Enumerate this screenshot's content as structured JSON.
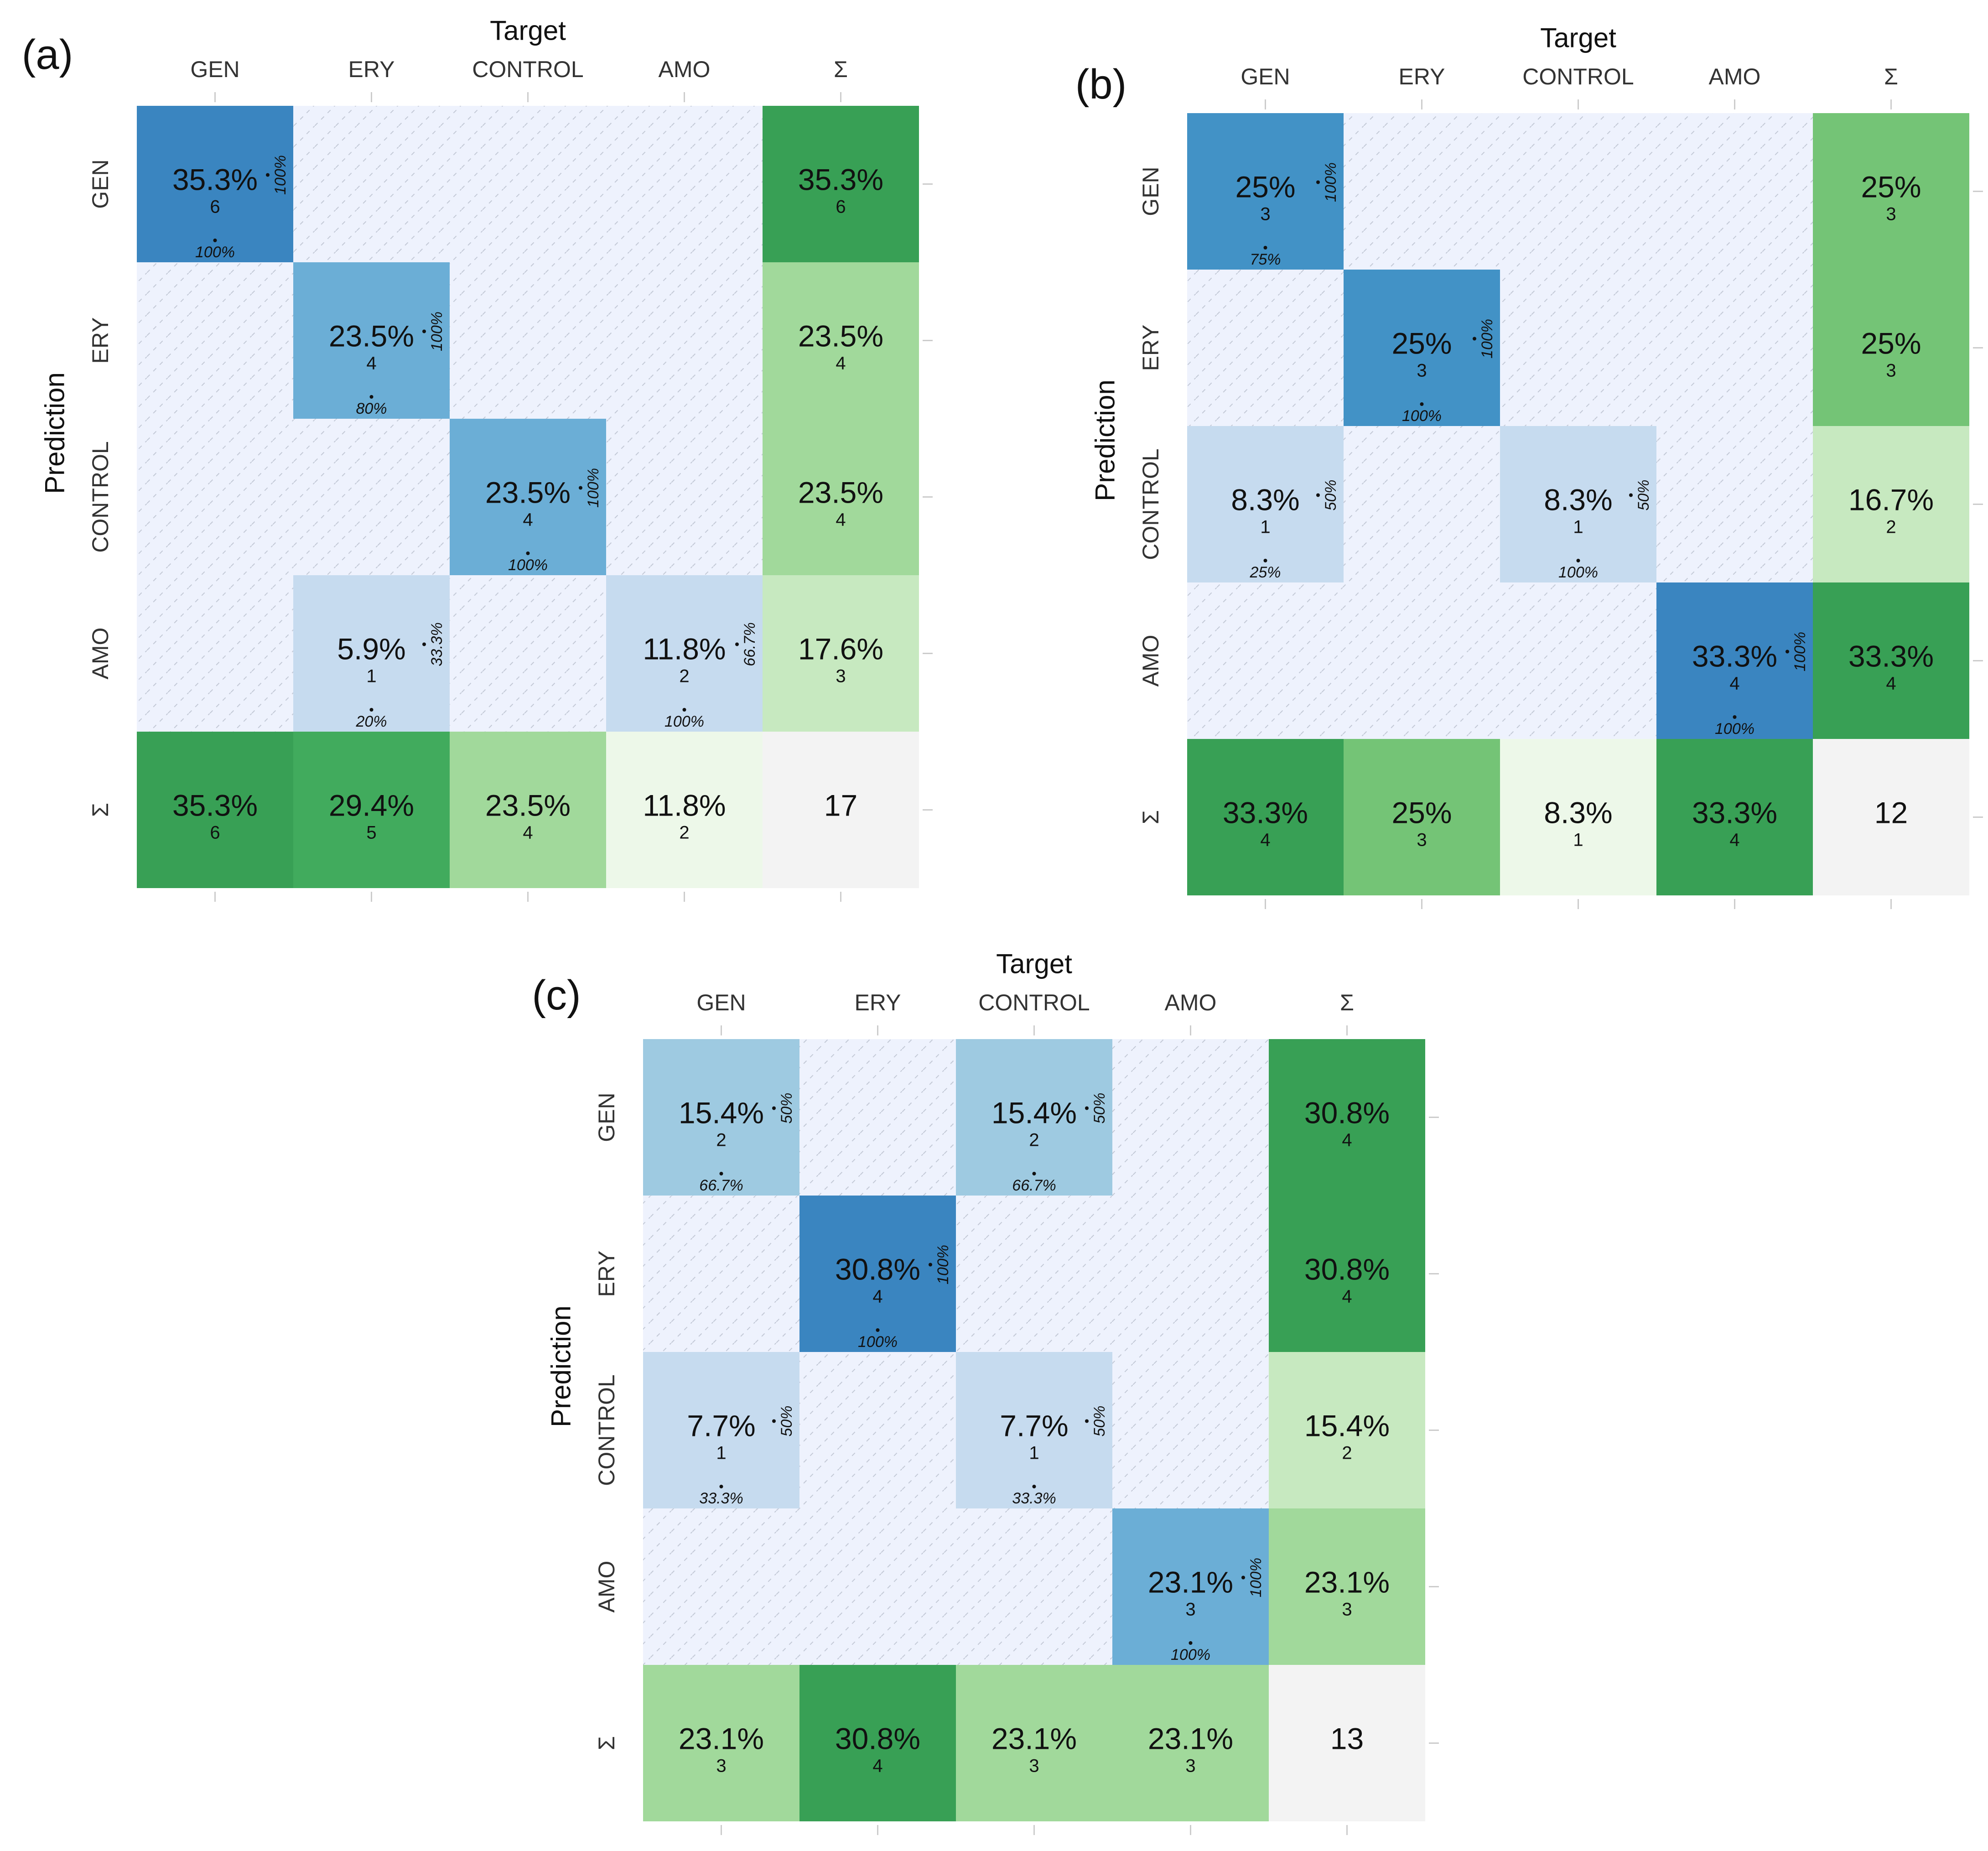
{
  "chart_data": [
    {
      "type": "heatmap",
      "panel_label": "(a)",
      "title": "",
      "xlabel": "Target",
      "ylabel": "Prediction",
      "classes": [
        "GEN",
        "ERY",
        "CONTROL",
        "AMO"
      ],
      "sum_label": "Σ",
      "total": 17,
      "cells": [
        {
          "row": 0,
          "col": 0,
          "pct": "35.3%",
          "count": "6",
          "col_pct": "100%",
          "row_pct": "100%"
        },
        {
          "row": 1,
          "col": 1,
          "pct": "23.5%",
          "count": "4",
          "col_pct": "80%",
          "row_pct": "100%"
        },
        {
          "row": 2,
          "col": 2,
          "pct": "23.5%",
          "count": "4",
          "col_pct": "100%",
          "row_pct": "100%"
        },
        {
          "row": 3,
          "col": 1,
          "pct": "5.9%",
          "count": "1",
          "col_pct": "20%",
          "row_pct": "33.3%"
        },
        {
          "row": 3,
          "col": 3,
          "pct": "11.8%",
          "count": "2",
          "col_pct": "100%",
          "row_pct": "66.7%"
        }
      ],
      "row_sums": [
        {
          "pct": "35.3%",
          "count": "6"
        },
        {
          "pct": "23.5%",
          "count": "4"
        },
        {
          "pct": "23.5%",
          "count": "4"
        },
        {
          "pct": "17.6%",
          "count": "3"
        }
      ],
      "col_sums": [
        {
          "pct": "35.3%",
          "count": "6"
        },
        {
          "pct": "29.4%",
          "count": "5"
        },
        {
          "pct": "23.5%",
          "count": "4"
        },
        {
          "pct": "11.8%",
          "count": "2"
        }
      ]
    },
    {
      "type": "heatmap",
      "panel_label": "(b)",
      "title": "",
      "xlabel": "Target",
      "ylabel": "Prediction",
      "classes": [
        "GEN",
        "ERY",
        "CONTROL",
        "AMO"
      ],
      "sum_label": "Σ",
      "total": 12,
      "cells": [
        {
          "row": 0,
          "col": 0,
          "pct": "25%",
          "count": "3",
          "col_pct": "75%",
          "row_pct": "100%"
        },
        {
          "row": 1,
          "col": 1,
          "pct": "25%",
          "count": "3",
          "col_pct": "100%",
          "row_pct": "100%"
        },
        {
          "row": 2,
          "col": 0,
          "pct": "8.3%",
          "count": "1",
          "col_pct": "25%",
          "row_pct": "50%"
        },
        {
          "row": 2,
          "col": 2,
          "pct": "8.3%",
          "count": "1",
          "col_pct": "100%",
          "row_pct": "50%"
        },
        {
          "row": 3,
          "col": 3,
          "pct": "33.3%",
          "count": "4",
          "col_pct": "100%",
          "row_pct": "100%"
        }
      ],
      "row_sums": [
        {
          "pct": "25%",
          "count": "3"
        },
        {
          "pct": "25%",
          "count": "3"
        },
        {
          "pct": "16.7%",
          "count": "2"
        },
        {
          "pct": "33.3%",
          "count": "4"
        }
      ],
      "col_sums": [
        {
          "pct": "33.3%",
          "count": "4"
        },
        {
          "pct": "25%",
          "count": "3"
        },
        {
          "pct": "8.3%",
          "count": "1"
        },
        {
          "pct": "33.3%",
          "count": "4"
        }
      ]
    },
    {
      "type": "heatmap",
      "panel_label": "(c)",
      "title": "",
      "xlabel": "Target",
      "ylabel": "Prediction",
      "classes": [
        "GEN",
        "ERY",
        "CONTROL",
        "AMO"
      ],
      "sum_label": "Σ",
      "total": 13,
      "cells": [
        {
          "row": 0,
          "col": 0,
          "pct": "15.4%",
          "count": "2",
          "col_pct": "66.7%",
          "row_pct": "50%"
        },
        {
          "row": 0,
          "col": 2,
          "pct": "15.4%",
          "count": "2",
          "col_pct": "66.7%",
          "row_pct": "50%"
        },
        {
          "row": 1,
          "col": 1,
          "pct": "30.8%",
          "count": "4",
          "col_pct": "100%",
          "row_pct": "100%"
        },
        {
          "row": 2,
          "col": 0,
          "pct": "7.7%",
          "count": "1",
          "col_pct": "33.3%",
          "row_pct": "50%"
        },
        {
          "row": 2,
          "col": 2,
          "pct": "7.7%",
          "count": "1",
          "col_pct": "33.3%",
          "row_pct": "50%"
        },
        {
          "row": 3,
          "col": 3,
          "pct": "23.1%",
          "count": "3",
          "col_pct": "100%",
          "row_pct": "100%"
        }
      ],
      "row_sums": [
        {
          "pct": "30.8%",
          "count": "4"
        },
        {
          "pct": "30.8%",
          "count": "4"
        },
        {
          "pct": "15.4%",
          "count": "2"
        },
        {
          "pct": "23.1%",
          "count": "3"
        }
      ],
      "col_sums": [
        {
          "pct": "23.1%",
          "count": "3"
        },
        {
          "pct": "30.8%",
          "count": "4"
        },
        {
          "pct": "23.1%",
          "count": "3"
        },
        {
          "pct": "23.1%",
          "count": "3"
        }
      ]
    }
  ],
  "colors": {
    "empty_cell": "#eef2fd",
    "hatch": "#c3c9d6",
    "total_cell": "#f3f3f3",
    "text": "#111111",
    "grid_tick": "#cccccc",
    "blue_scale": [
      "#c6dbef",
      "#9ecae1",
      "#6baed6",
      "#4292c6",
      "#3a85c0"
    ],
    "green_scale": [
      "#edf8e9",
      "#c7e9c0",
      "#a1d99b",
      "#74c476",
      "#41ab5d",
      "#38a055"
    ]
  }
}
